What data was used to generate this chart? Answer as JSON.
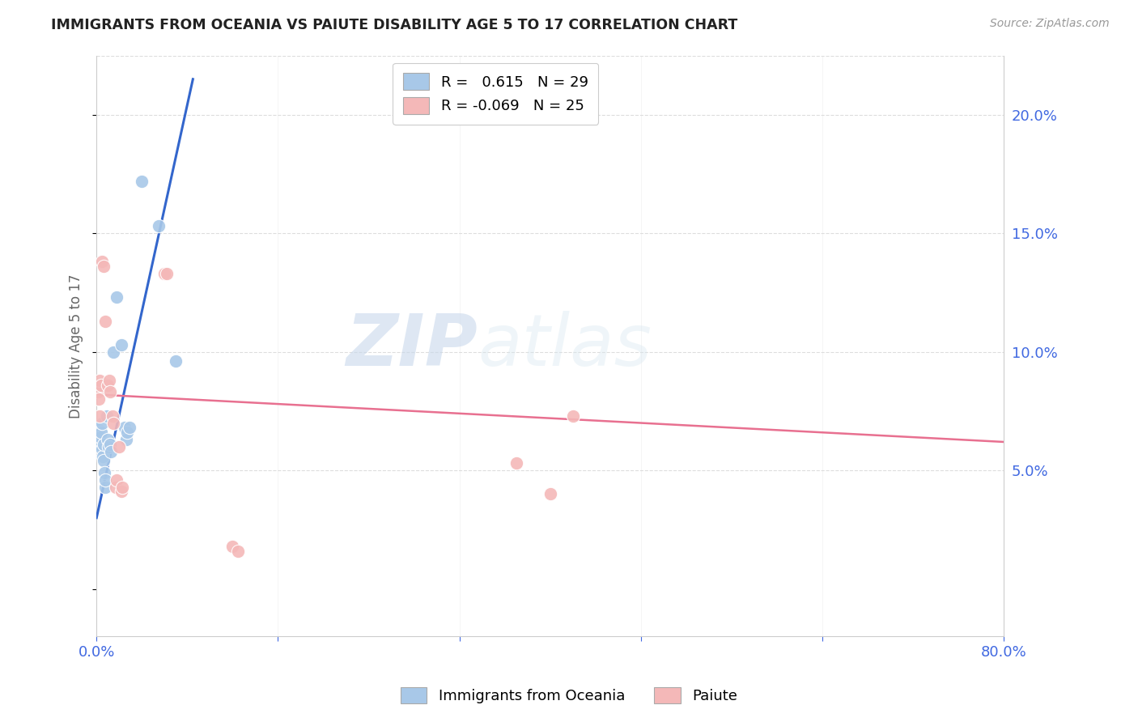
{
  "title": "IMMIGRANTS FROM OCEANIA VS PAIUTE DISABILITY AGE 5 TO 17 CORRELATION CHART",
  "source": "Source: ZipAtlas.com",
  "ylabel": "Disability Age 5 to 17",
  "ytick_values": [
    5.0,
    10.0,
    15.0,
    20.0
  ],
  "xlim": [
    0.0,
    80.0
  ],
  "ylim": [
    -2.0,
    22.5
  ],
  "watermark_zip": "ZIP",
  "watermark_atlas": "atlas",
  "blue_color": "#a8c8e8",
  "pink_color": "#f4b8b8",
  "blue_line_color": "#3366cc",
  "pink_line_color": "#e87090",
  "axis_color": "#4169e1",
  "grid_color": "#dddddd",
  "blue_scatter": [
    [
      0.15,
      6.3
    ],
    [
      0.2,
      6.7
    ],
    [
      0.25,
      6.5
    ],
    [
      0.3,
      6.1
    ],
    [
      0.35,
      6.4
    ],
    [
      0.4,
      6.6
    ],
    [
      0.45,
      7.0
    ],
    [
      0.5,
      5.9
    ],
    [
      0.55,
      5.6
    ],
    [
      0.6,
      5.4
    ],
    [
      0.65,
      6.1
    ],
    [
      0.7,
      4.9
    ],
    [
      0.75,
      4.3
    ],
    [
      0.8,
      4.6
    ],
    [
      0.9,
      7.3
    ],
    [
      1.0,
      6.3
    ],
    [
      1.05,
      6.0
    ],
    [
      1.2,
      6.1
    ],
    [
      1.25,
      5.8
    ],
    [
      1.5,
      10.0
    ],
    [
      1.8,
      12.3
    ],
    [
      2.2,
      10.3
    ],
    [
      2.5,
      6.8
    ],
    [
      2.6,
      6.3
    ],
    [
      2.7,
      6.6
    ],
    [
      2.9,
      6.8
    ],
    [
      4.0,
      17.2
    ],
    [
      5.5,
      15.3
    ],
    [
      7.0,
      9.6
    ]
  ],
  "pink_scatter": [
    [
      0.15,
      8.3
    ],
    [
      0.2,
      8.0
    ],
    [
      0.25,
      7.3
    ],
    [
      0.3,
      8.8
    ],
    [
      0.4,
      8.6
    ],
    [
      0.5,
      13.8
    ],
    [
      0.6,
      13.6
    ],
    [
      0.8,
      11.3
    ],
    [
      1.0,
      8.6
    ],
    [
      1.1,
      8.8
    ],
    [
      1.2,
      8.3
    ],
    [
      1.4,
      7.3
    ],
    [
      1.5,
      7.0
    ],
    [
      1.7,
      4.3
    ],
    [
      1.8,
      4.6
    ],
    [
      2.0,
      6.0
    ],
    [
      2.2,
      4.1
    ],
    [
      2.3,
      4.3
    ],
    [
      6.0,
      13.3
    ],
    [
      6.2,
      13.3
    ],
    [
      12.0,
      1.8
    ],
    [
      12.5,
      1.6
    ],
    [
      37.0,
      5.3
    ],
    [
      40.0,
      4.0
    ],
    [
      42.0,
      7.3
    ]
  ],
  "blue_line_x": [
    0.0,
    8.5
  ],
  "blue_line_y": [
    3.0,
    21.5
  ],
  "pink_line_x": [
    0.0,
    80.0
  ],
  "pink_line_y": [
    8.2,
    6.2
  ],
  "legend1_label": "R =   0.615   N = 29",
  "legend2_label": "R = -0.069   N = 25"
}
